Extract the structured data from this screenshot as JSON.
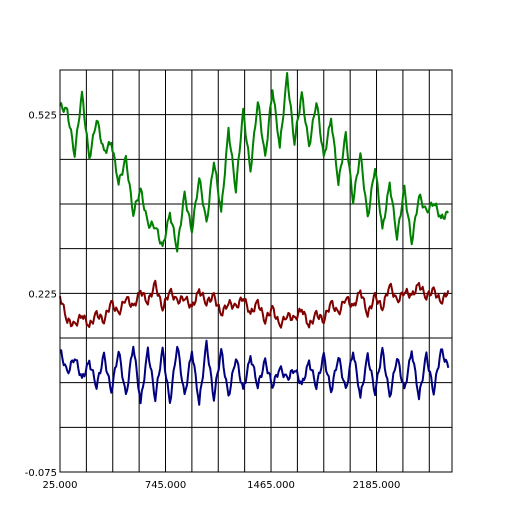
{
  "chart_data": {
    "type": "line",
    "title": "",
    "xlabel": "",
    "ylabel": "",
    "xlim": [
      25,
      2700
    ],
    "ylim": [
      -0.075,
      0.6
    ],
    "grid": true,
    "legend": "none",
    "x_ticks": [
      {
        "value": 25,
        "label": "25.000"
      },
      {
        "value": 745,
        "label": "745.000"
      },
      {
        "value": 1465,
        "label": "1465.000"
      },
      {
        "value": 2185,
        "label": "2185.000"
      }
    ],
    "y_ticks": [
      {
        "value": -0.075,
        "label": "-0.075"
      },
      {
        "value": 0.225,
        "label": "0.225"
      },
      {
        "value": 0.525,
        "label": "0.525"
      }
    ],
    "x_grid_step": 180,
    "y_grid_step": 0.075,
    "series": [
      {
        "color": "#008000",
        "x": [
          25,
          75,
          125,
          175,
          225,
          275,
          325,
          375,
          425,
          475,
          525,
          575,
          625,
          675,
          725,
          775,
          825,
          875,
          925,
          975,
          1025,
          1075,
          1125,
          1175,
          1225,
          1275,
          1325,
          1375,
          1425,
          1475,
          1525,
          1575,
          1625,
          1675,
          1725,
          1775,
          1825,
          1875,
          1925,
          1975,
          2025,
          2075,
          2125,
          2175,
          2225,
          2275,
          2325,
          2375,
          2425,
          2475,
          2525,
          2575,
          2625,
          2675
        ],
        "y": [
          0.54,
          0.53,
          0.46,
          0.56,
          0.45,
          0.52,
          0.46,
          0.48,
          0.41,
          0.45,
          0.36,
          0.4,
          0.34,
          0.34,
          0.3,
          0.36,
          0.3,
          0.39,
          0.33,
          0.42,
          0.34,
          0.45,
          0.36,
          0.5,
          0.4,
          0.53,
          0.43,
          0.55,
          0.45,
          0.57,
          0.47,
          0.59,
          0.48,
          0.56,
          0.47,
          0.55,
          0.45,
          0.52,
          0.41,
          0.49,
          0.38,
          0.46,
          0.35,
          0.44,
          0.33,
          0.41,
          0.32,
          0.4,
          0.31,
          0.39,
          0.36,
          0.38,
          0.35,
          0.36
        ]
      },
      {
        "color": "#800000",
        "x": [
          25,
          75,
          125,
          175,
          225,
          275,
          325,
          375,
          425,
          475,
          525,
          575,
          625,
          675,
          725,
          775,
          825,
          875,
          925,
          975,
          1025,
          1075,
          1125,
          1175,
          1225,
          1275,
          1325,
          1375,
          1425,
          1475,
          1525,
          1575,
          1625,
          1675,
          1725,
          1775,
          1825,
          1875,
          1925,
          1975,
          2025,
          2075,
          2125,
          2175,
          2225,
          2275,
          2325,
          2375,
          2425,
          2475,
          2525,
          2575,
          2625,
          2675
        ],
        "y": [
          0.22,
          0.18,
          0.17,
          0.19,
          0.17,
          0.19,
          0.18,
          0.21,
          0.19,
          0.22,
          0.2,
          0.23,
          0.21,
          0.24,
          0.2,
          0.23,
          0.21,
          0.22,
          0.2,
          0.23,
          0.21,
          0.22,
          0.19,
          0.21,
          0.2,
          0.22,
          0.19,
          0.21,
          0.18,
          0.2,
          0.17,
          0.19,
          0.18,
          0.2,
          0.17,
          0.19,
          0.18,
          0.21,
          0.19,
          0.22,
          0.2,
          0.23,
          0.19,
          0.22,
          0.2,
          0.24,
          0.21,
          0.23,
          0.22,
          0.24,
          0.22,
          0.23,
          0.21,
          0.23
        ]
      },
      {
        "color": "#000080",
        "x": [
          25,
          75,
          125,
          175,
          225,
          275,
          325,
          375,
          425,
          475,
          525,
          575,
          625,
          675,
          725,
          775,
          825,
          875,
          925,
          975,
          1025,
          1075,
          1125,
          1175,
          1225,
          1275,
          1325,
          1375,
          1425,
          1475,
          1525,
          1575,
          1625,
          1675,
          1725,
          1775,
          1825,
          1875,
          1925,
          1975,
          2025,
          2075,
          2125,
          2175,
          2225,
          2275,
          2325,
          2375,
          2425,
          2475,
          2525,
          2575,
          2625,
          2675
        ],
        "y": [
          0.13,
          0.09,
          0.12,
          0.08,
          0.11,
          0.07,
          0.12,
          0.06,
          0.13,
          0.05,
          0.14,
          0.04,
          0.13,
          0.05,
          0.13,
          0.04,
          0.14,
          0.05,
          0.13,
          0.04,
          0.14,
          0.05,
          0.13,
          0.05,
          0.12,
          0.06,
          0.12,
          0.07,
          0.11,
          0.07,
          0.1,
          0.08,
          0.1,
          0.07,
          0.11,
          0.07,
          0.12,
          0.06,
          0.12,
          0.06,
          0.13,
          0.05,
          0.12,
          0.06,
          0.13,
          0.05,
          0.12,
          0.06,
          0.13,
          0.05,
          0.12,
          0.06,
          0.13,
          0.1
        ]
      }
    ]
  }
}
